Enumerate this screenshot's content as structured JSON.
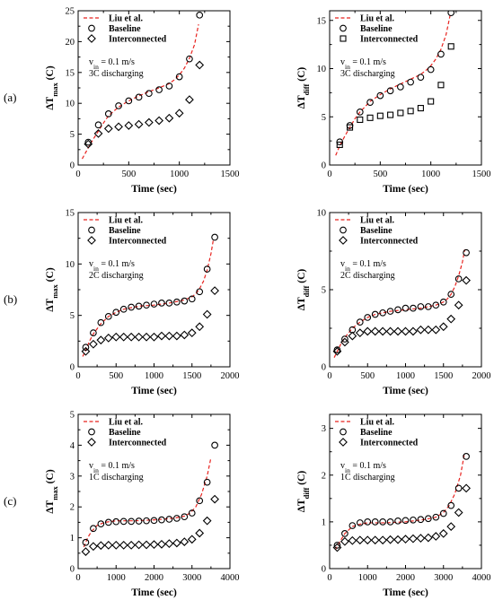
{
  "row_labels": [
    "(a)",
    "(b)",
    "(c)"
  ],
  "colors": {
    "model_line": "#e8231f",
    "axis": "#000000",
    "marker": "#000000"
  },
  "chart_data": [
    {
      "type": "scatter",
      "row": 0,
      "col": 0,
      "xlabel": "Time (sec)",
      "ylabel": {
        "base": "ΔT",
        "sub": "max",
        "unit": " (C)"
      },
      "xlim": [
        0,
        1500
      ],
      "ylim": [
        0,
        25
      ],
      "xticks": [
        0,
        500,
        1000,
        1500
      ],
      "yticks": [
        0,
        5,
        10,
        15,
        20,
        25
      ],
      "annotation": {
        "line1_base": "v",
        "line1_sub": "in",
        "line1_rest": " = 0.1 m/s",
        "line2": "3C discharging"
      },
      "legend": {
        "position": "top-left",
        "entries": [
          "Liu et al.",
          "Baseline",
          "Interconnected"
        ]
      },
      "grid": false,
      "series": [
        {
          "name": "Liu et al.",
          "style": "dashed-line",
          "x": [
            40,
            100,
            150,
            200,
            250,
            300,
            400,
            500,
            600,
            700,
            800,
            900,
            950,
            1000,
            1050,
            1100,
            1150,
            1190
          ],
          "y": [
            1.0,
            2.8,
            4.2,
            5.5,
            6.8,
            8.0,
            9.4,
            10.4,
            11.2,
            11.9,
            12.5,
            13.2,
            13.8,
            14.6,
            15.7,
            17.3,
            19.5,
            22.8
          ]
        },
        {
          "name": "Baseline",
          "style": "circle",
          "x": [
            100,
            200,
            300,
            400,
            500,
            600,
            700,
            800,
            900,
            1000,
            1100,
            1200
          ],
          "y": [
            3.7,
            6.5,
            8.3,
            9.6,
            10.4,
            11.0,
            11.6,
            12.2,
            12.8,
            14.3,
            17.2,
            24.3
          ]
        },
        {
          "name": "Interconnected",
          "style": "diamond",
          "x": [
            100,
            200,
            300,
            400,
            500,
            600,
            700,
            800,
            900,
            1000,
            1100,
            1200
          ],
          "y": [
            3.4,
            5.1,
            5.9,
            6.2,
            6.4,
            6.6,
            6.9,
            7.2,
            7.6,
            8.4,
            10.6,
            16.2
          ]
        }
      ]
    },
    {
      "type": "scatter",
      "row": 0,
      "col": 1,
      "xlabel": "Time (sec)",
      "ylabel": {
        "base": "ΔT",
        "sub": "diff",
        "unit": " (C)"
      },
      "xlim": [
        0,
        1500
      ],
      "ylim": [
        0,
        16
      ],
      "xticks": [
        0,
        500,
        1000,
        1500
      ],
      "yticks": [
        0,
        5,
        10,
        15
      ],
      "annotation": {
        "line1_base": "v",
        "line1_sub": "in",
        "line1_rest": " = 0.1 m/s",
        "line2": "3C discharging"
      },
      "legend": {
        "position": "top-left",
        "entries": [
          "Liu et al.",
          "Baseline",
          "Interconnected"
        ]
      },
      "grid": false,
      "series": [
        {
          "name": "Liu et al.",
          "style": "dashed-line",
          "x": [
            60,
            100,
            150,
            200,
            250,
            300,
            400,
            500,
            600,
            700,
            800,
            900,
            950,
            1000,
            1050,
            1100,
            1150,
            1190
          ],
          "y": [
            1.0,
            2.0,
            3.0,
            3.9,
            4.8,
            5.5,
            6.6,
            7.3,
            7.9,
            8.4,
            8.9,
            9.4,
            9.8,
            10.3,
            11.0,
            12.0,
            13.5,
            15.5
          ]
        },
        {
          "name": "Baseline",
          "style": "circle",
          "x": [
            100,
            200,
            300,
            400,
            500,
            600,
            700,
            800,
            900,
            1000,
            1100,
            1200
          ],
          "y": [
            2.4,
            4.1,
            5.5,
            6.5,
            7.2,
            7.7,
            8.1,
            8.6,
            9.1,
            9.9,
            11.5,
            15.8
          ]
        },
        {
          "name": "Interconnected",
          "style": "square",
          "x": [
            100,
            200,
            300,
            400,
            500,
            600,
            700,
            800,
            900,
            1000,
            1100,
            1200
          ],
          "y": [
            2.1,
            3.9,
            4.7,
            4.9,
            5.1,
            5.2,
            5.4,
            5.6,
            5.9,
            6.6,
            8.3,
            12.3
          ]
        }
      ]
    },
    {
      "type": "scatter",
      "row": 1,
      "col": 0,
      "xlabel": "Time (sec)",
      "ylabel": {
        "base": "ΔT",
        "sub": "max",
        "unit": " (C)"
      },
      "xlim": [
        0,
        2000
      ],
      "ylim": [
        0,
        15
      ],
      "xticks": [
        0,
        500,
        1000,
        1500,
        2000
      ],
      "yticks": [
        0,
        5,
        10,
        15
      ],
      "annotation": {
        "line1_base": "v",
        "line1_sub": "in",
        "line1_rest": " = 0.1 m/s",
        "line2": "2C discharging"
      },
      "legend": {
        "position": "top-left",
        "entries": [
          "Liu et al.",
          "Baseline",
          "Interconnected"
        ]
      },
      "grid": false,
      "series": [
        {
          "name": "Liu et al.",
          "style": "dashed-line",
          "x": [
            60,
            100,
            150,
            200,
            300,
            400,
            500,
            600,
            800,
            1000,
            1200,
            1400,
            1500,
            1550,
            1600,
            1650,
            1700,
            1750,
            1780
          ],
          "y": [
            1.0,
            1.6,
            2.5,
            3.2,
            4.2,
            4.9,
            5.3,
            5.6,
            5.9,
            6.0,
            6.2,
            6.5,
            6.8,
            7.1,
            7.6,
            8.3,
            9.4,
            11.0,
            12.3
          ]
        },
        {
          "name": "Baseline",
          "style": "circle",
          "x": [
            100,
            200,
            300,
            400,
            500,
            600,
            700,
            800,
            900,
            1000,
            1100,
            1200,
            1300,
            1400,
            1500,
            1600,
            1700,
            1800
          ],
          "y": [
            1.9,
            3.3,
            4.3,
            4.9,
            5.3,
            5.6,
            5.8,
            5.9,
            6.0,
            6.1,
            6.2,
            6.2,
            6.3,
            6.4,
            6.6,
            7.3,
            9.5,
            12.6
          ]
        },
        {
          "name": "Interconnected",
          "style": "diamond",
          "x": [
            100,
            200,
            300,
            400,
            500,
            600,
            700,
            800,
            900,
            1000,
            1100,
            1200,
            1300,
            1400,
            1500,
            1600,
            1700,
            1800
          ],
          "y": [
            1.5,
            2.2,
            2.6,
            2.8,
            2.9,
            2.9,
            2.9,
            2.9,
            2.9,
            2.9,
            3.0,
            3.0,
            3.0,
            3.1,
            3.3,
            3.9,
            5.1,
            7.4
          ]
        }
      ]
    },
    {
      "type": "scatter",
      "row": 1,
      "col": 1,
      "xlabel": "Time (sec)",
      "ylabel": {
        "base": "ΔT",
        "sub": "diff",
        "unit": " (C)"
      },
      "xlim": [
        0,
        2000
      ],
      "ylim": [
        0,
        10
      ],
      "xticks": [
        0,
        500,
        1000,
        1500,
        2000
      ],
      "yticks": [
        0,
        5,
        10
      ],
      "annotation": {
        "line1_base": "v",
        "line1_sub": "in",
        "line1_rest": " = 0.1 m/s",
        "line2": "2C discharging"
      },
      "legend": {
        "position": "top-left",
        "entries": [
          "Liu et al.",
          "Baseline",
          "Interconnected"
        ]
      },
      "grid": false,
      "series": [
        {
          "name": "Liu et al.",
          "style": "dashed-line",
          "x": [
            60,
            100,
            150,
            200,
            300,
            400,
            500,
            600,
            800,
            1000,
            1200,
            1400,
            1500,
            1550,
            1600,
            1650,
            1700,
            1750,
            1780
          ],
          "y": [
            0.6,
            1.0,
            1.5,
            1.9,
            2.5,
            2.9,
            3.2,
            3.4,
            3.6,
            3.7,
            3.8,
            4.0,
            4.2,
            4.4,
            4.7,
            5.2,
            5.9,
            6.8,
            7.6
          ]
        },
        {
          "name": "Baseline",
          "style": "circle",
          "x": [
            100,
            200,
            300,
            400,
            500,
            600,
            700,
            800,
            900,
            1000,
            1100,
            1200,
            1300,
            1400,
            1500,
            1600,
            1700,
            1800
          ],
          "y": [
            1.1,
            1.8,
            2.4,
            2.9,
            3.2,
            3.4,
            3.5,
            3.6,
            3.7,
            3.8,
            3.8,
            3.9,
            3.9,
            4.0,
            4.2,
            4.7,
            5.7,
            7.4
          ]
        },
        {
          "name": "Interconnected",
          "style": "diamond",
          "x": [
            100,
            200,
            300,
            400,
            500,
            600,
            700,
            800,
            900,
            1000,
            1100,
            1200,
            1300,
            1400,
            1500,
            1600,
            1700,
            1800
          ],
          "y": [
            1.0,
            1.6,
            2.0,
            2.2,
            2.3,
            2.3,
            2.3,
            2.3,
            2.3,
            2.3,
            2.3,
            2.4,
            2.4,
            2.4,
            2.6,
            3.1,
            4.0,
            5.6
          ]
        }
      ]
    },
    {
      "type": "scatter",
      "row": 2,
      "col": 0,
      "xlabel": "Time (sec)",
      "ylabel": {
        "base": "ΔT",
        "sub": "max",
        "unit": " (C)"
      },
      "xlim": [
        0,
        4000
      ],
      "ylim": [
        0,
        5
      ],
      "xticks": [
        0,
        1000,
        2000,
        3000,
        4000
      ],
      "yticks": [
        0,
        1,
        2,
        3,
        4,
        5
      ],
      "annotation": {
        "line1_base": "v",
        "line1_sub": "in",
        "line1_rest": " = 0.1 m/s",
        "line2": "1C discharging"
      },
      "legend": {
        "position": "top-left",
        "entries": [
          "Liu et al.",
          "Baseline",
          "Interconnected"
        ]
      },
      "grid": false,
      "series": [
        {
          "name": "Liu et al.",
          "style": "dashed-line",
          "x": [
            150,
            250,
            350,
            500,
            700,
            1000,
            1500,
            2000,
            2500,
            2800,
            2950,
            3100,
            3250,
            3400,
            3500
          ],
          "y": [
            0.7,
            1.0,
            1.2,
            1.4,
            1.5,
            1.55,
            1.55,
            1.58,
            1.63,
            1.7,
            1.8,
            2.0,
            2.4,
            3.0,
            3.6
          ]
        },
        {
          "name": "Baseline",
          "style": "circle",
          "x": [
            200,
            400,
            600,
            800,
            1000,
            1200,
            1400,
            1600,
            1800,
            2000,
            2200,
            2400,
            2600,
            2800,
            3000,
            3200,
            3400,
            3600
          ],
          "y": [
            0.85,
            1.3,
            1.45,
            1.5,
            1.52,
            1.53,
            1.53,
            1.54,
            1.55,
            1.56,
            1.58,
            1.6,
            1.63,
            1.68,
            1.8,
            2.2,
            2.8,
            4.0
          ]
        },
        {
          "name": "Interconnected",
          "style": "diamond",
          "x": [
            200,
            400,
            600,
            800,
            1000,
            1200,
            1400,
            1600,
            1800,
            2000,
            2200,
            2400,
            2600,
            2800,
            3000,
            3200,
            3400,
            3600
          ],
          "y": [
            0.55,
            0.72,
            0.75,
            0.76,
            0.76,
            0.76,
            0.76,
            0.77,
            0.77,
            0.78,
            0.79,
            0.81,
            0.83,
            0.87,
            0.95,
            1.15,
            1.55,
            2.25
          ]
        }
      ]
    },
    {
      "type": "scatter",
      "row": 2,
      "col": 1,
      "xlabel": "Time (sec)",
      "ylabel": {
        "base": "ΔT",
        "sub": "diff",
        "unit": " (C)"
      },
      "xlim": [
        0,
        4000
      ],
      "ylim": [
        0,
        3.3
      ],
      "xticks": [
        0,
        1000,
        2000,
        3000,
        4000
      ],
      "yticks": [
        0,
        1,
        2,
        3
      ],
      "annotation": {
        "line1_base": "v",
        "line1_sub": "in",
        "line1_rest": " = 0.1 m/s",
        "line2": "1C discharging"
      },
      "legend": {
        "position": "top-left",
        "entries": [
          "Liu et al.",
          "Baseline",
          "Interconnected"
        ]
      },
      "grid": false,
      "series": [
        {
          "name": "Liu et al.",
          "style": "dashed-line",
          "x": [
            150,
            250,
            400,
            600,
            800,
            1000,
            1500,
            2000,
            2500,
            2800,
            3000,
            3150,
            3300,
            3450,
            3550
          ],
          "y": [
            0.4,
            0.55,
            0.75,
            0.9,
            0.95,
            0.98,
            0.98,
            1.0,
            1.05,
            1.1,
            1.2,
            1.35,
            1.6,
            2.0,
            2.45
          ]
        },
        {
          "name": "Baseline",
          "style": "circle",
          "x": [
            200,
            400,
            600,
            800,
            1000,
            1200,
            1400,
            1600,
            1800,
            2000,
            2200,
            2400,
            2600,
            2800,
            3000,
            3200,
            3400,
            3600
          ],
          "y": [
            0.5,
            0.75,
            0.92,
            0.98,
            1.0,
            1.0,
            1.0,
            1.0,
            1.02,
            1.03,
            1.04,
            1.05,
            1.07,
            1.1,
            1.18,
            1.35,
            1.72,
            2.4
          ]
        },
        {
          "name": "Interconnected",
          "style": "diamond",
          "x": [
            200,
            400,
            600,
            800,
            1000,
            1200,
            1400,
            1600,
            1800,
            2000,
            2200,
            2400,
            2600,
            2800,
            3000,
            3200,
            3400,
            3600
          ],
          "y": [
            0.45,
            0.58,
            0.6,
            0.61,
            0.61,
            0.61,
            0.61,
            0.62,
            0.62,
            0.63,
            0.64,
            0.65,
            0.66,
            0.69,
            0.75,
            0.9,
            1.2,
            1.72
          ]
        }
      ]
    }
  ]
}
